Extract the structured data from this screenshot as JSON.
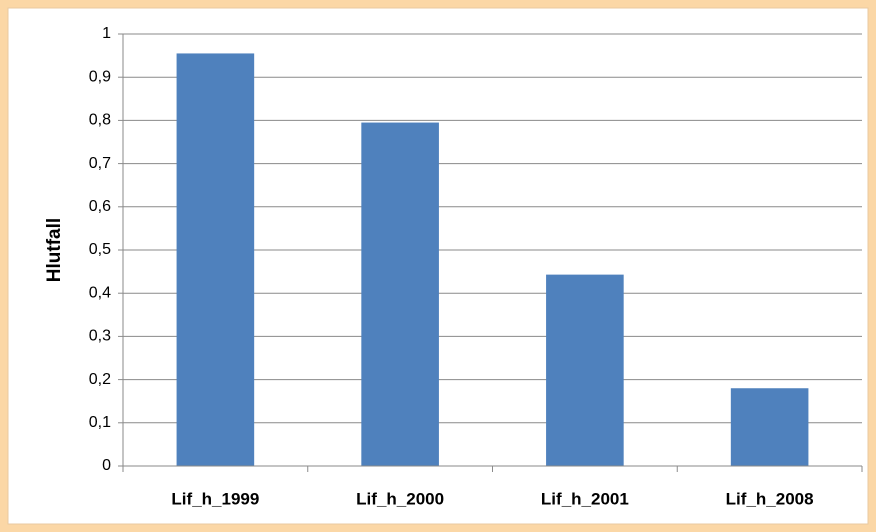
{
  "chart_data": {
    "type": "bar",
    "y_label": "Hlutfall",
    "categories": [
      "Lif_h_1999",
      "Lif_h_2000",
      "Lif_h_2001",
      "Lif_h_2008"
    ],
    "values": [
      0.955,
      0.795,
      0.443,
      0.18
    ],
    "color": "#4f81bd",
    "ylim": [
      0,
      1
    ],
    "yticks": [
      0,
      {
        "value": 0.1,
        "label": "0,1"
      },
      {
        "value": 0.2,
        "label": "0,2"
      },
      {
        "value": 0.3,
        "label": "0,3"
      },
      {
        "value": 0.4,
        "label": "0,4"
      },
      {
        "value": 0.5,
        "label": "0,5"
      },
      {
        "value": 0.6,
        "label": "0,6"
      },
      {
        "value": 0.7,
        "label": "0,7"
      },
      {
        "value": 0.8,
        "label": "0,8"
      },
      {
        "value": 0.9,
        "label": "0,9"
      },
      1
    ],
    "grid": true
  }
}
